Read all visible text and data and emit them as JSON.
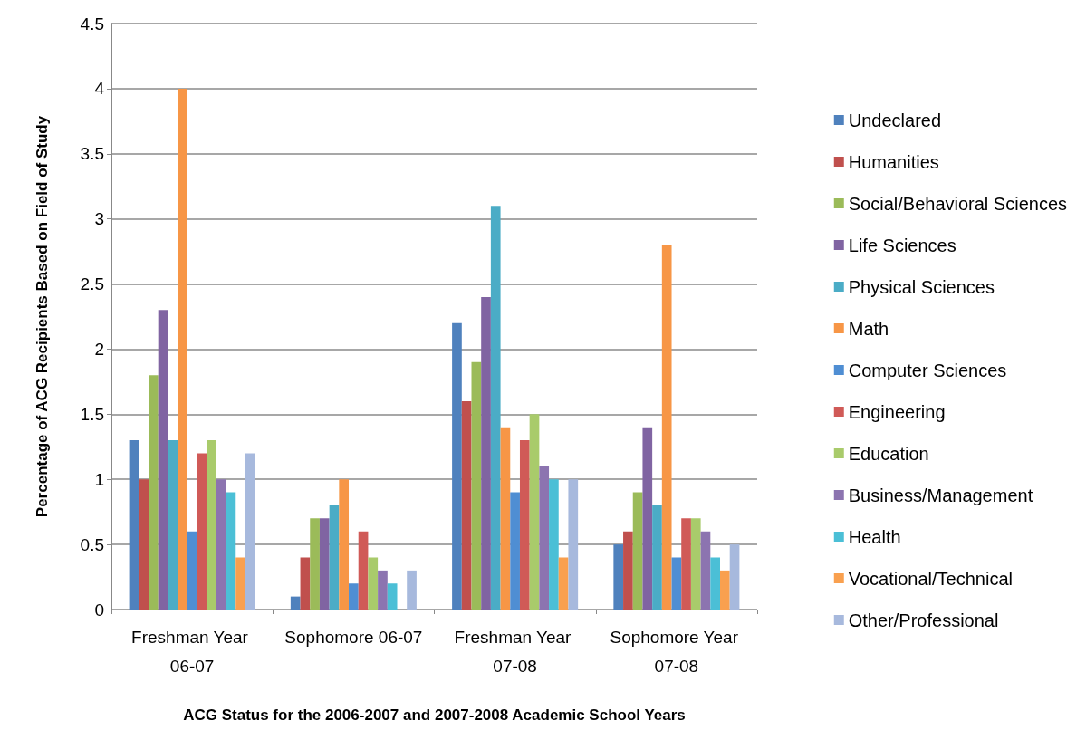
{
  "chart_data": {
    "type": "bar",
    "xlabel": "ACG Status for the 2006-2007 and 2007-2008 Academic School Years",
    "ylabel": "Percentage of ACG Recipients Based on Field of Study",
    "categories": [
      "Freshman Year 06-07",
      "Sophomore 06-07",
      "Freshman Year 07-08",
      "Sophomore Year 07-08"
    ],
    "series": [
      {
        "name": "Undeclared",
        "color": "#4f81bd",
        "values": [
          1.3,
          0.1,
          2.2,
          0.5
        ]
      },
      {
        "name": "Humanities",
        "color": "#c0504d",
        "values": [
          1.0,
          0.4,
          1.6,
          0.6
        ]
      },
      {
        "name": "Social/Behavioral Sciences",
        "color": "#9bbb59",
        "values": [
          1.8,
          0.7,
          1.9,
          0.9
        ]
      },
      {
        "name": "Life Sciences",
        "color": "#8064a2",
        "values": [
          2.3,
          0.7,
          2.4,
          1.4
        ]
      },
      {
        "name": "Physical Sciences",
        "color": "#4bacc6",
        "values": [
          1.3,
          0.8,
          3.1,
          0.8
        ]
      },
      {
        "name": "Math",
        "color": "#f79646",
        "values": [
          4.0,
          1.0,
          1.4,
          2.8
        ]
      },
      {
        "name": "Computer Sciences",
        "color": "#4f8ed3",
        "values": [
          0.6,
          0.2,
          0.9,
          0.4
        ]
      },
      {
        "name": "Engineering",
        "color": "#d05a57",
        "values": [
          1.2,
          0.6,
          1.3,
          0.7
        ]
      },
      {
        "name": "Education",
        "color": "#a9cb6b",
        "values": [
          1.3,
          0.4,
          1.5,
          0.7
        ]
      },
      {
        "name": "Business/Management",
        "color": "#8c74b0",
        "values": [
          1.0,
          0.3,
          1.1,
          0.6
        ]
      },
      {
        "name": "Health",
        "color": "#4bbfd6",
        "values": [
          0.9,
          0.2,
          1.0,
          0.4
        ]
      },
      {
        "name": "Vocational/Technical",
        "color": "#f9a04f",
        "values": [
          0.4,
          0,
          0.4,
          0.3
        ]
      },
      {
        "name": "Other/Professional",
        "color": "#a7b9dd",
        "values": [
          1.2,
          0.3,
          1.0,
          0.5
        ]
      }
    ],
    "ylim": [
      0,
      4.5
    ],
    "yticks": [
      0,
      0.5,
      1,
      1.5,
      2,
      2.5,
      3,
      3.5,
      4,
      4.5
    ],
    "grid": "y",
    "legend": "right"
  }
}
